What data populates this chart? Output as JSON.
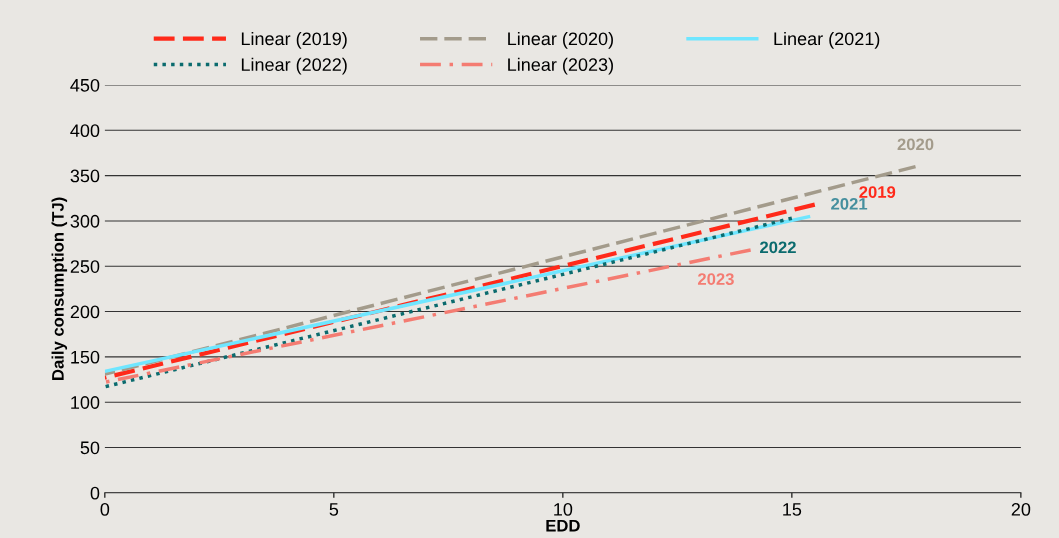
{
  "chart_data": {
    "type": "line",
    "xlabel": "EDD",
    "ylabel": "Daily consumption (TJ)",
    "xlim": [
      0,
      20
    ],
    "xticks": [
      0,
      5,
      10,
      15,
      20
    ],
    "ylim": [
      0,
      450
    ],
    "yticks": [
      0,
      50,
      100,
      150,
      200,
      250,
      300,
      350,
      400,
      450
    ],
    "grid": "y",
    "legend": "top",
    "marker": "none",
    "series": [
      {
        "name": "Linear (2019)",
        "color": "#ff2a1a",
        "line_style": "dashed",
        "x": [
          0,
          15.5
        ],
        "values": [
          127,
          318
        ]
      },
      {
        "name": "Linear (2020)",
        "color": "#a39b8b",
        "line_style": "dashed",
        "x": [
          0,
          17.7
        ],
        "values": [
          131,
          360
        ]
      },
      {
        "name": "Linear (2021)",
        "color": "#6fe6ff",
        "line_style": "solid",
        "x": [
          0,
          15.4
        ],
        "values": [
          134,
          305
        ]
      },
      {
        "name": "Linear (2022)",
        "color": "#0b6b6e",
        "line_style": "dotted",
        "x": [
          0,
          15
        ],
        "values": [
          117,
          303
        ]
      },
      {
        "name": "Linear (2023)",
        "color": "#f47c72",
        "line_style": "dashdot",
        "x": [
          0,
          14.1
        ],
        "values": [
          122,
          268
        ]
      }
    ],
    "annotations": [
      "2019",
      "2020",
      "2021",
      "2022",
      "2023"
    ]
  }
}
